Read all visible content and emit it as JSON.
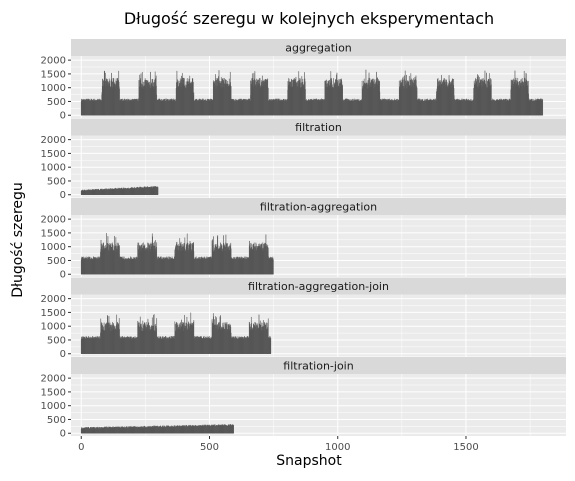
{
  "chart_data": {
    "type": "bar",
    "title": "Długość szeregu w kolejnych eksperymentach",
    "xlabel": "Snapshot",
    "ylabel": "Długość szeregu",
    "xlim": [
      -40,
      1890
    ],
    "ylim": [
      -100,
      2150
    ],
    "x_ticks": [
      0,
      500,
      1000,
      1500
    ],
    "y_ticks": [
      0,
      500,
      1000,
      1500,
      2000
    ],
    "grid": true,
    "colors": {
      "bar": "#595959",
      "panel": "#ebebeb",
      "strip": "#d9d9d9",
      "grid": "#ffffff"
    },
    "facets": [
      {
        "label": "aggregation",
        "n_snapshots": 1800,
        "baseline": 500,
        "low_noise": 100,
        "peak_noise": 400,
        "cycle_start": 80,
        "cycle_period": 145,
        "peak_width": 70,
        "peak_level": 1150,
        "spike_level": 1650
      },
      {
        "label": "filtration",
        "n_snapshots": 300,
        "baseline": 120,
        "low_noise": 60,
        "peak_noise": 0,
        "ramp_to": 260,
        "cycle_start": 0,
        "cycle_period": 0,
        "peak_width": 0,
        "peak_level": 0,
        "spike_level": 0
      },
      {
        "label": "filtration-aggregation",
        "n_snapshots": 750,
        "baseline": 520,
        "low_noise": 120,
        "peak_noise": 350,
        "cycle_start": 75,
        "cycle_period": 145,
        "peak_width": 75,
        "peak_level": 1000,
        "spike_level": 1500
      },
      {
        "label": "filtration-aggregation-join",
        "n_snapshots": 740,
        "baseline": 520,
        "low_noise": 120,
        "peak_noise": 350,
        "cycle_start": 75,
        "cycle_period": 145,
        "peak_width": 75,
        "peak_level": 1000,
        "spike_level": 1500
      },
      {
        "label": "filtration-join",
        "n_snapshots": 595,
        "baseline": 150,
        "low_noise": 70,
        "peak_noise": 0,
        "ramp_to": 260,
        "cycle_start": 0,
        "cycle_period": 0,
        "peak_width": 0,
        "peak_level": 0,
        "spike_level": 0
      }
    ]
  }
}
